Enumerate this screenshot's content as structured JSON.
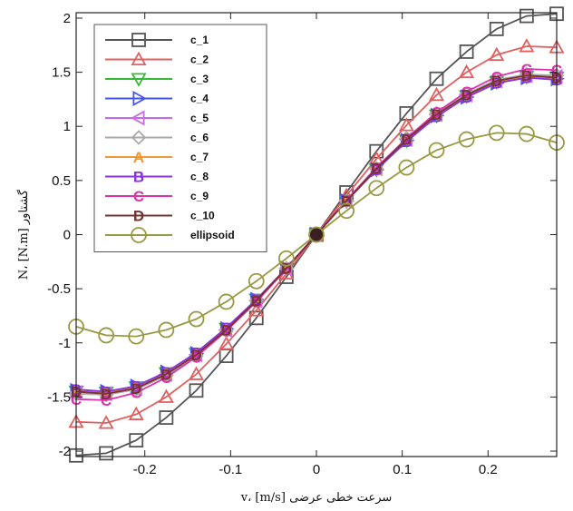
{
  "chart_data": {
    "type": "line",
    "xlabel": "سرعت خطی عرضی v، [m/s]",
    "ylabel": "گشتاور N، [N.m]",
    "xlim": [
      -0.28,
      0.28
    ],
    "ylim": [
      -2.05,
      2.05
    ],
    "xticks": [
      -0.2,
      -0.1,
      0,
      0.1,
      0.2
    ],
    "xtick_labels": [
      "-0.2",
      "-0.1",
      "0",
      "0.1",
      "0.2"
    ],
    "yticks": [
      -2,
      -1.5,
      -1,
      -0.5,
      0,
      0.5,
      1,
      1.5,
      2
    ],
    "ytick_labels": [
      "-2",
      "-1.5",
      "-1",
      "-0.5",
      "0",
      "0.5",
      "1",
      "1.5",
      "2"
    ],
    "grid": false,
    "legend_position": "top-left",
    "x": [
      -0.28,
      -0.245,
      -0.21,
      -0.175,
      -0.14,
      -0.105,
      -0.07,
      -0.035,
      0,
      0.035,
      0.07,
      0.105,
      0.14,
      0.175,
      0.21,
      0.245,
      0.28
    ],
    "series": [
      {
        "name": "c_1",
        "color": "#555555",
        "marker": "square",
        "values": [
          -2.04,
          -2.02,
          -1.9,
          -1.69,
          -1.44,
          -1.12,
          -0.77,
          -0.39,
          0,
          0.39,
          0.77,
          1.12,
          1.44,
          1.69,
          1.9,
          2.02,
          2.04
        ]
      },
      {
        "name": "c_2",
        "color": "#e06060",
        "marker": "triangle-up",
        "values": [
          -1.73,
          -1.74,
          -1.66,
          -1.5,
          -1.29,
          -1.01,
          -0.7,
          -0.36,
          0,
          0.36,
          0.7,
          1.01,
          1.29,
          1.5,
          1.66,
          1.74,
          1.73
        ]
      },
      {
        "name": "c_3",
        "color": "#33bb33",
        "marker": "triangle-down",
        "values": [
          -1.45,
          -1.46,
          -1.41,
          -1.28,
          -1.1,
          -0.87,
          -0.6,
          -0.31,
          0,
          0.31,
          0.6,
          0.87,
          1.1,
          1.28,
          1.41,
          1.46,
          1.45
        ]
      },
      {
        "name": "c_4",
        "color": "#4455ee",
        "marker": "triangle-right",
        "values": [
          -1.44,
          -1.45,
          -1.4,
          -1.27,
          -1.1,
          -0.87,
          -0.6,
          -0.31,
          0,
          0.31,
          0.6,
          0.87,
          1.1,
          1.27,
          1.4,
          1.45,
          1.44
        ]
      },
      {
        "name": "c_5",
        "color": "#cc66ee",
        "marker": "triangle-left",
        "values": [
          -1.46,
          -1.47,
          -1.42,
          -1.29,
          -1.11,
          -0.88,
          -0.61,
          -0.31,
          0,
          0.31,
          0.61,
          0.88,
          1.11,
          1.29,
          1.42,
          1.47,
          1.46
        ]
      },
      {
        "name": "c_6",
        "color": "#aaaaaa",
        "marker": "diamond",
        "values": [
          -1.47,
          -1.48,
          -1.43,
          -1.3,
          -1.12,
          -0.89,
          -0.61,
          -0.31,
          0,
          0.31,
          0.61,
          0.89,
          1.12,
          1.3,
          1.43,
          1.48,
          1.47
        ]
      },
      {
        "name": "c_7",
        "color": "#ee9933",
        "marker": "A",
        "values": [
          -1.44,
          -1.46,
          -1.41,
          -1.28,
          -1.1,
          -0.87,
          -0.6,
          -0.31,
          0,
          0.31,
          0.6,
          0.87,
          1.1,
          1.28,
          1.41,
          1.46,
          1.44
        ]
      },
      {
        "name": "c_8",
        "color": "#8833dd",
        "marker": "B",
        "values": [
          -1.43,
          -1.45,
          -1.4,
          -1.27,
          -1.09,
          -0.86,
          -0.6,
          -0.31,
          0,
          0.31,
          0.6,
          0.86,
          1.09,
          1.27,
          1.4,
          1.45,
          1.43
        ]
      },
      {
        "name": "c_9",
        "color": "#dd33aa",
        "marker": "C",
        "values": [
          -1.52,
          -1.53,
          -1.46,
          -1.32,
          -1.13,
          -0.89,
          -0.62,
          -0.32,
          0,
          0.32,
          0.62,
          0.89,
          1.13,
          1.32,
          1.46,
          1.53,
          1.52
        ]
      },
      {
        "name": "c_10",
        "color": "#773333",
        "marker": "D",
        "values": [
          -1.45,
          -1.47,
          -1.42,
          -1.29,
          -1.11,
          -0.88,
          -0.61,
          -0.31,
          0,
          0.31,
          0.61,
          0.88,
          1.11,
          1.29,
          1.42,
          1.47,
          1.45
        ]
      },
      {
        "name": "ellipsoid",
        "color": "#999944",
        "marker": "circle",
        "values": [
          -0.85,
          -0.93,
          -0.94,
          -0.88,
          -0.78,
          -0.62,
          -0.43,
          -0.22,
          0,
          0.22,
          0.43,
          0.62,
          0.78,
          0.88,
          0.94,
          0.93,
          0.85
        ]
      }
    ]
  }
}
